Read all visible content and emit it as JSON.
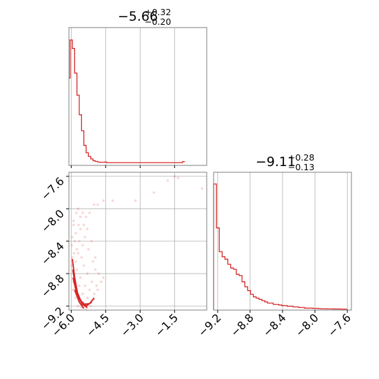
{
  "colors": {
    "line": "#d62728",
    "frame": "#7f7f7f",
    "grid": "#b0b0b0"
  },
  "chart_data": [
    {
      "panel": "top-left",
      "type": "histogram",
      "title": {
        "value": "−5.66",
        "upper": "+0.32",
        "lower": "−0.20"
      },
      "xlim": [
        -6.1,
        -0.1
      ],
      "xticks": [
        -6.0,
        -4.5,
        -3.0,
        -1.5
      ],
      "grid": true,
      "bin_edges": [
        -6.1,
        -6.05,
        -5.95,
        -5.85,
        -5.75,
        -5.65,
        -5.55,
        -5.45,
        -5.35,
        -5.25,
        -5.15,
        -5.05,
        -4.95,
        -4.85,
        -4.75,
        -4.65,
        -4.55,
        -4.45,
        -1.15,
        -1.05
      ],
      "counts": [
        0.69,
        1.0,
        0.93,
        0.73,
        0.55,
        0.39,
        0.26,
        0.14,
        0.08,
        0.05,
        0.03,
        0.015,
        0.01,
        0.005,
        0.003,
        0.003,
        0.005,
        0.0,
        0.008
      ]
    },
    {
      "panel": "bottom-left",
      "type": "scatter+contour",
      "xlim": [
        -6.1,
        -0.1
      ],
      "ylim": [
        -9.25,
        -7.55
      ],
      "xticks": [
        -6.0,
        -4.5,
        -3.0,
        -1.5
      ],
      "yticks": [
        -9.2,
        -8.8,
        -8.4,
        -8.0,
        -7.6
      ],
      "grid": true,
      "contours": [
        [
          [
            -5.95,
            -8.62
          ],
          [
            -5.85,
            -8.85
          ],
          [
            -5.72,
            -9.05
          ],
          [
            -5.5,
            -9.18
          ],
          [
            -5.2,
            -9.17
          ],
          [
            -5.0,
            -9.1
          ]
        ],
        [
          [
            -5.93,
            -8.75
          ],
          [
            -5.8,
            -8.98
          ],
          [
            -5.6,
            -9.13
          ],
          [
            -5.35,
            -9.2
          ],
          [
            -5.1,
            -9.15
          ]
        ],
        [
          [
            -5.92,
            -8.85
          ],
          [
            -5.75,
            -9.06
          ],
          [
            -5.5,
            -9.18
          ],
          [
            -5.3,
            -9.22
          ]
        ],
        [
          [
            -5.85,
            -9.0
          ],
          [
            -5.65,
            -9.15
          ],
          [
            -5.45,
            -9.23
          ]
        ]
      ],
      "points": [
        [
          -5.7,
          -8.0
        ],
        [
          -5.6,
          -8.1
        ],
        [
          -5.5,
          -8.05
        ],
        [
          -5.35,
          -8.1
        ],
        [
          -5.2,
          -8.05
        ],
        [
          -5.0,
          -7.95
        ],
        [
          -4.85,
          -7.95
        ],
        [
          -4.6,
          -7.9
        ],
        [
          -4.2,
          -7.9
        ],
        [
          -3.2,
          -7.9
        ],
        [
          -2.4,
          -7.8
        ],
        [
          -1.8,
          -7.65
        ],
        [
          -1.5,
          -7.6
        ],
        [
          -1.35,
          -7.62
        ],
        [
          -0.3,
          -7.75
        ],
        [
          -5.9,
          -8.2
        ],
        [
          -5.8,
          -8.3
        ],
        [
          -5.95,
          -8.35
        ],
        [
          -5.75,
          -8.5
        ],
        [
          -5.65,
          -8.4
        ],
        [
          -5.55,
          -8.6
        ],
        [
          -5.45,
          -8.7
        ],
        [
          -5.3,
          -8.8
        ],
        [
          -5.1,
          -8.9
        ],
        [
          -4.9,
          -8.95
        ],
        [
          -4.7,
          -8.9
        ],
        [
          -4.6,
          -8.85
        ],
        [
          -5.97,
          -8.45
        ],
        [
          -5.88,
          -8.55
        ],
        [
          -5.6,
          -8.25
        ],
        [
          -5.4,
          -8.35
        ],
        [
          -5.25,
          -8.5
        ],
        [
          -5.05,
          -8.65
        ],
        [
          -4.95,
          -8.75
        ],
        [
          -4.8,
          -8.8
        ],
        [
          -5.92,
          -9.0
        ],
        [
          -5.82,
          -9.1
        ],
        [
          -5.7,
          -9.2
        ],
        [
          -5.55,
          -9.22
        ],
        [
          -5.35,
          -9.24
        ],
        [
          -5.15,
          -9.2
        ],
        [
          -5.02,
          -9.12
        ],
        [
          -5.97,
          -8.7
        ],
        [
          -5.65,
          -8.95
        ],
        [
          -5.5,
          -9.05
        ],
        [
          -5.3,
          -9.1
        ],
        [
          -5.9,
          -8.15
        ],
        [
          -5.78,
          -8.05
        ],
        [
          -5.68,
          -8.2
        ],
        [
          -5.85,
          -8.4
        ],
        [
          -5.95,
          -8.6
        ],
        [
          -5.75,
          -8.75
        ],
        [
          -5.6,
          -8.85
        ],
        [
          -5.4,
          -8.95
        ],
        [
          -5.2,
          -9.0
        ],
        [
          -5.0,
          -9.05
        ],
        [
          -4.85,
          -9.0
        ],
        [
          -5.9,
          -8.9
        ],
        [
          -5.8,
          -8.65
        ],
        [
          -5.7,
          -8.55
        ],
        [
          -5.5,
          -8.45
        ],
        [
          -5.45,
          -8.2
        ],
        [
          -5.3,
          -8.25
        ],
        [
          -5.12,
          -8.4
        ],
        [
          -4.95,
          -8.6
        ]
      ]
    },
    {
      "panel": "bottom-right",
      "type": "histogram",
      "title": {
        "value": "−9.11",
        "upper": "+0.28",
        "lower": "−0.13"
      },
      "xlim": [
        -9.25,
        -7.55
      ],
      "xticks": [
        -9.2,
        -8.8,
        -8.4,
        -8.0,
        -7.6
      ],
      "grid": true,
      "bin_edges": [
        -9.25,
        -9.215,
        -9.18,
        -9.145,
        -9.11,
        -9.075,
        -9.04,
        -9.005,
        -8.97,
        -8.935,
        -8.9,
        -8.865,
        -8.83,
        -8.795,
        -8.76,
        -8.725,
        -8.69,
        -8.655,
        -8.62,
        -8.585,
        -8.55,
        -8.515,
        -8.48,
        -8.445,
        -8.41,
        -8.375,
        -8.34,
        -8.305,
        -8.27,
        -8.235,
        -8.2,
        -8.165,
        -8.13,
        -8.095,
        -8.06,
        -8.025,
        -7.99,
        -7.955,
        -7.92,
        -7.885,
        -7.85,
        -7.815,
        -7.78,
        -7.745,
        -7.71,
        -7.675,
        -7.64,
        -7.6
      ],
      "counts": [
        1.0,
        0.65,
        0.46,
        0.42,
        0.4,
        0.36,
        0.33,
        0.32,
        0.28,
        0.27,
        0.22,
        0.18,
        0.15,
        0.12,
        0.1,
        0.09,
        0.08,
        0.07,
        0.06,
        0.05,
        0.05,
        0.04,
        0.04,
        0.035,
        0.03,
        0.03,
        0.025,
        0.025,
        0.02,
        0.02,
        0.015,
        0.015,
        0.01,
        0.01,
        0.01,
        0.008,
        0.008,
        0.006,
        0.005,
        0.005,
        0.004,
        0.004,
        0.003,
        0.003,
        0.003,
        0.002,
        0.002
      ]
    }
  ]
}
